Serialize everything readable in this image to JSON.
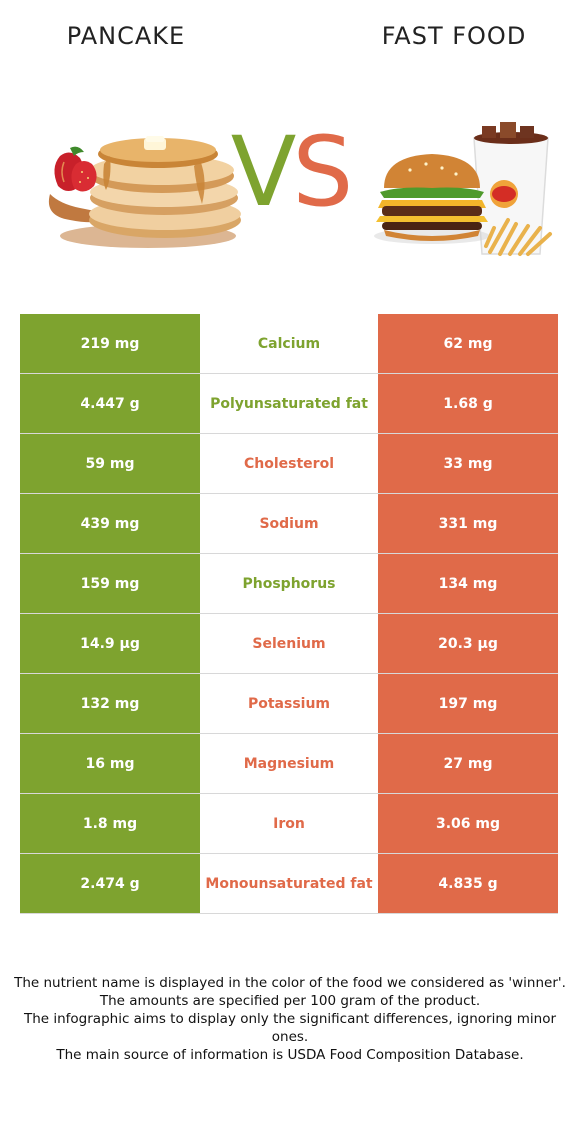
{
  "header": {
    "left_title": "PANCAKE",
    "right_title": "FAST FOOD",
    "vs_v": "V",
    "vs_s": "S"
  },
  "colors": {
    "winner_left": "#7ea32f",
    "winner_right": "#e06a49"
  },
  "images": {
    "left": "pancake-stack-illustration",
    "right": "burger-fries-drink-illustration"
  },
  "rows": [
    {
      "left": "219 mg",
      "nutrient": "Calcium",
      "right": "62 mg",
      "winner": "left"
    },
    {
      "left": "4.447 g",
      "nutrient": "Polyunsaturated fat",
      "right": "1.68 g",
      "winner": "left"
    },
    {
      "left": "59 mg",
      "nutrient": "Cholesterol",
      "right": "33 mg",
      "winner": "right"
    },
    {
      "left": "439 mg",
      "nutrient": "Sodium",
      "right": "331 mg",
      "winner": "right"
    },
    {
      "left": "159 mg",
      "nutrient": "Phosphorus",
      "right": "134 mg",
      "winner": "left"
    },
    {
      "left": "14.9 µg",
      "nutrient": "Selenium",
      "right": "20.3 µg",
      "winner": "right"
    },
    {
      "left": "132 mg",
      "nutrient": "Potassium",
      "right": "197 mg",
      "winner": "right"
    },
    {
      "left": "16 mg",
      "nutrient": "Magnesium",
      "right": "27 mg",
      "winner": "right"
    },
    {
      "left": "1.8 mg",
      "nutrient": "Iron",
      "right": "3.06 mg",
      "winner": "right"
    },
    {
      "left": "2.474 g",
      "nutrient": "Monounsaturated fat",
      "right": "4.835 g",
      "winner": "right"
    }
  ],
  "footer": {
    "line1": "The nutrient name is displayed in the color of the food we considered as 'winner'.",
    "line2": "The amounts are specified per 100 gram of the product.",
    "line3": "The infographic aims to display only the significant differences, ignoring minor ones.",
    "line4": "The main source of information is USDA Food Composition Database."
  }
}
